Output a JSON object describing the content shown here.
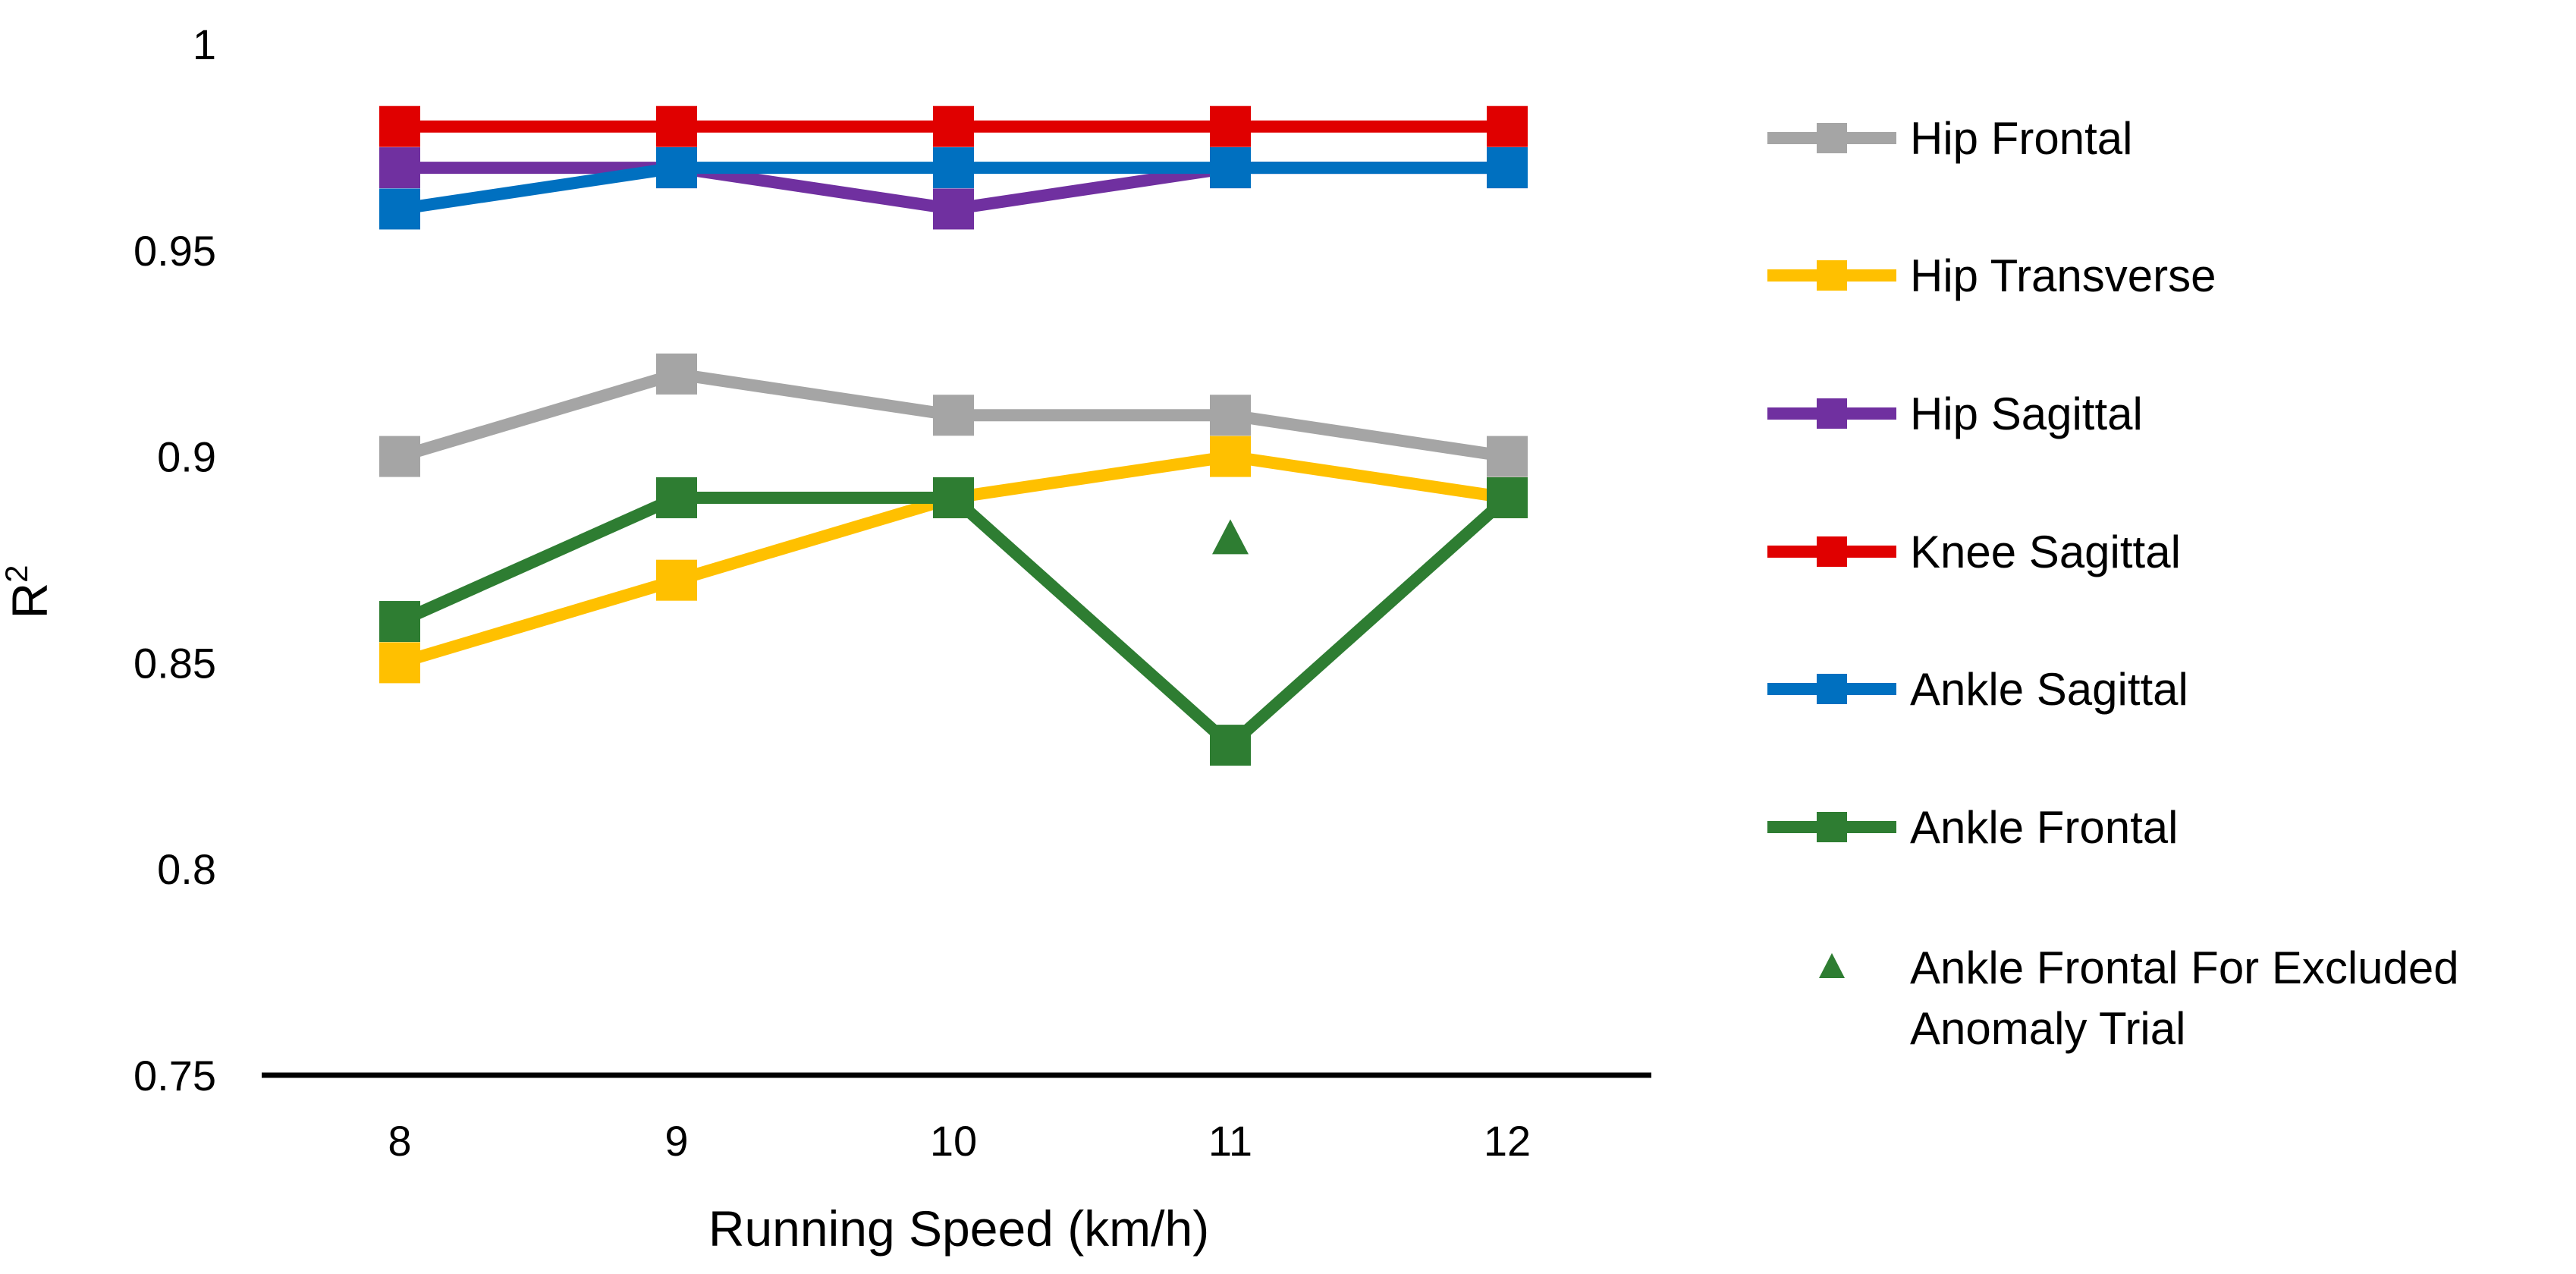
{
  "chart_data": {
    "type": "line",
    "title": "",
    "xlabel": "Running Speed (km/h)",
    "ylabel": "R",
    "ylabel_superscript": "2",
    "categories": [
      "8",
      "9",
      "10",
      "11",
      "12"
    ],
    "ylim": [
      0.75,
      1
    ],
    "yticks": [
      "0.75",
      "0.8",
      "0.85",
      "0.9",
      "0.95",
      "1"
    ],
    "grid": false,
    "legend_position": "right",
    "series": [
      {
        "name": "Hip Frontal",
        "color": "#a5a5a5",
        "marker": "square",
        "values": [
          0.9,
          0.92,
          0.91,
          0.91,
          0.9
        ]
      },
      {
        "name": "Hip Transverse",
        "color": "#ffc000",
        "marker": "square",
        "values": [
          0.85,
          0.87,
          0.89,
          0.9,
          0.89
        ]
      },
      {
        "name": "Hip Sagittal",
        "color": "#7030a0",
        "marker": "square",
        "values": [
          0.97,
          0.97,
          0.96,
          0.97,
          0.97
        ]
      },
      {
        "name": "Knee Sagittal",
        "color": "#e00000",
        "marker": "square",
        "values": [
          0.98,
          0.98,
          0.98,
          0.98,
          0.98
        ]
      },
      {
        "name": "Ankle Sagittal",
        "color": "#0070c0",
        "marker": "square",
        "values": [
          0.96,
          0.97,
          0.97,
          0.97,
          0.97
        ]
      },
      {
        "name": "Ankle Frontal",
        "color": "#2e7d32",
        "marker": "square",
        "values": [
          0.86,
          0.89,
          0.89,
          0.83,
          0.89
        ]
      }
    ],
    "extra_points": [
      {
        "name_lines": [
          "Ankle Frontal For Excluded",
          "Anomaly Trial"
        ],
        "color": "#2e7d32",
        "marker": "triangle",
        "x": "11",
        "y": 0.88
      }
    ]
  }
}
